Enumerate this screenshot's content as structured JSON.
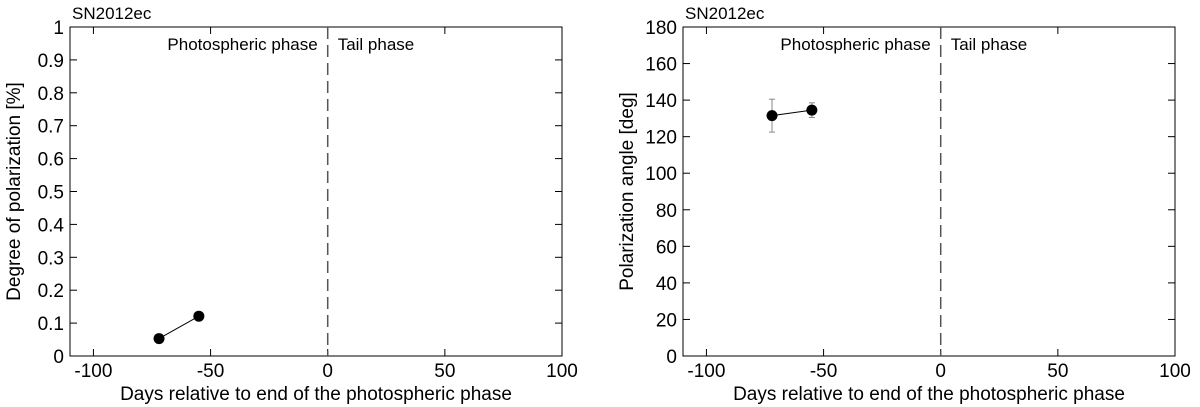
{
  "chart_data": [
    {
      "type": "scatter",
      "title": "SN2012ec",
      "xlabel": "Days relative to end of the photospheric phase",
      "ylabel": "Degree of polarization [%]",
      "xlim": [
        -110,
        100
      ],
      "ylim": [
        0,
        1
      ],
      "xticks": [
        -100,
        -50,
        0,
        50,
        100
      ],
      "yticks": [
        0,
        0.1,
        0.2,
        0.3,
        0.4,
        0.5,
        0.6,
        0.7,
        0.8,
        0.9,
        1
      ],
      "grid": false,
      "annotations": [
        "Photospheric phase",
        "Tail phase"
      ],
      "divider_x": 0,
      "series": [
        {
          "x": [
            -72,
            -55
          ],
          "y": [
            0.053,
            0.121
          ],
          "yerr": [
            0.005,
            0.005
          ],
          "connected": true
        }
      ]
    },
    {
      "type": "scatter",
      "title": "SN2012ec",
      "xlabel": "Days relative to end of the photospheric phase",
      "ylabel": "Polarization angle [deg]",
      "xlim": [
        -110,
        100
      ],
      "ylim": [
        0,
        180
      ],
      "xticks": [
        -100,
        -50,
        0,
        50,
        100
      ],
      "yticks": [
        0,
        20,
        40,
        60,
        80,
        100,
        120,
        140,
        160,
        180
      ],
      "grid": false,
      "annotations": [
        "Photospheric phase",
        "Tail phase"
      ],
      "divider_x": 0,
      "series": [
        {
          "x": [
            -72,
            -55
          ],
          "y": [
            131.5,
            134.5
          ],
          "yerr": [
            9,
            4
          ],
          "connected": true
        }
      ]
    }
  ]
}
